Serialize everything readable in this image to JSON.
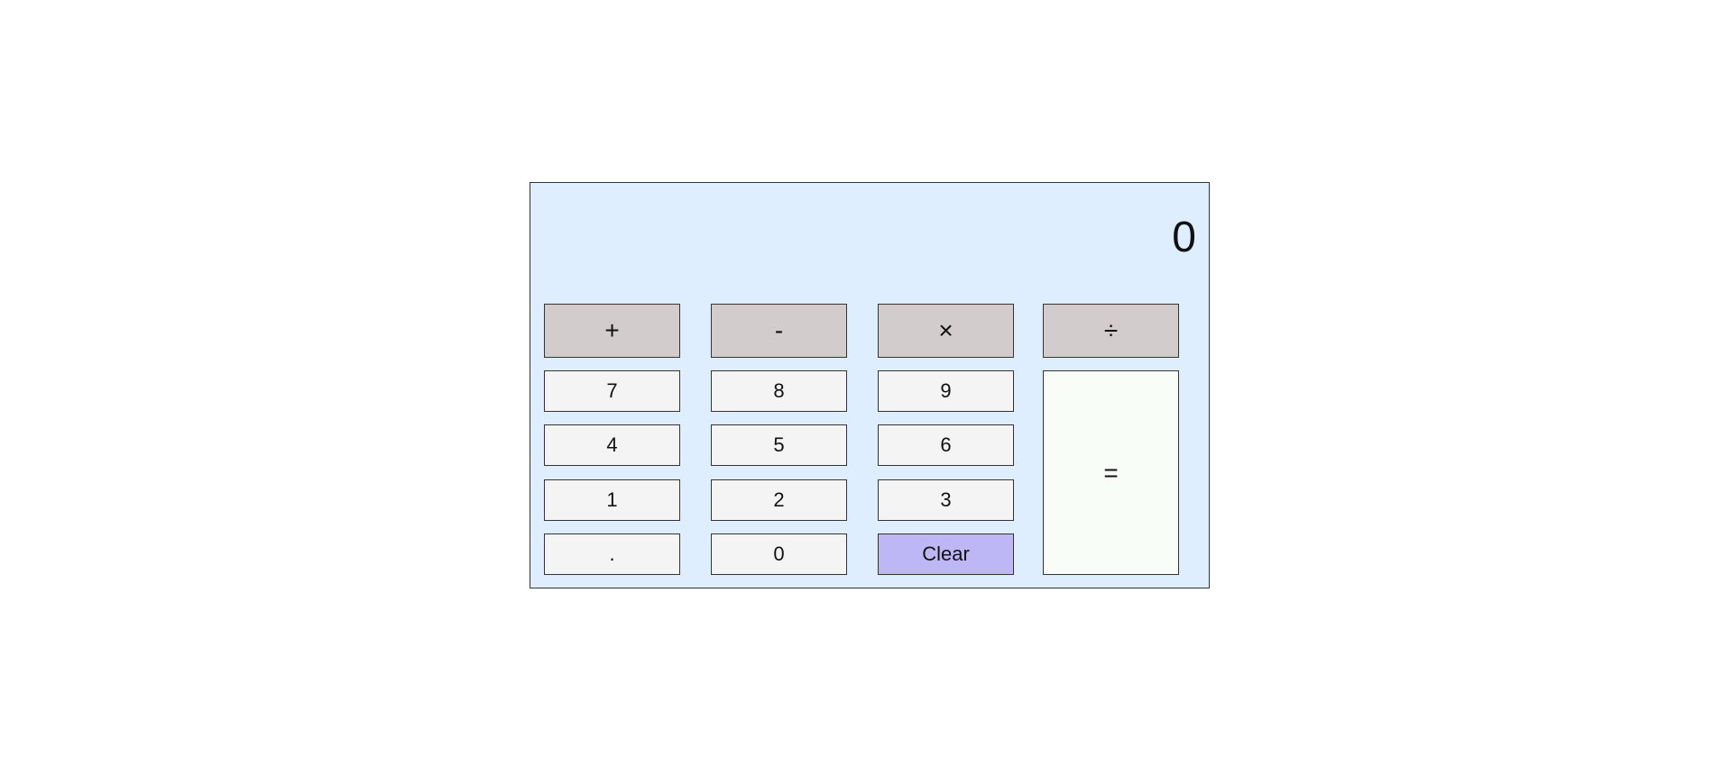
{
  "display": {
    "value": "0"
  },
  "operators": {
    "add": "+",
    "subtract": "-",
    "multiply": "×",
    "divide": "÷"
  },
  "keys": {
    "seven": "7",
    "eight": "8",
    "nine": "9",
    "four": "4",
    "five": "5",
    "six": "6",
    "one": "1",
    "two": "2",
    "three": "3",
    "decimal": ".",
    "zero": "0",
    "clear": "Clear",
    "equals": "="
  },
  "colors": {
    "panel_background": "#deeeff",
    "operator_background": "#d2cccd",
    "digit_background": "#f4f4f4",
    "clear_background": "#bdb8f5",
    "equals_background": "#f8fdf8"
  }
}
